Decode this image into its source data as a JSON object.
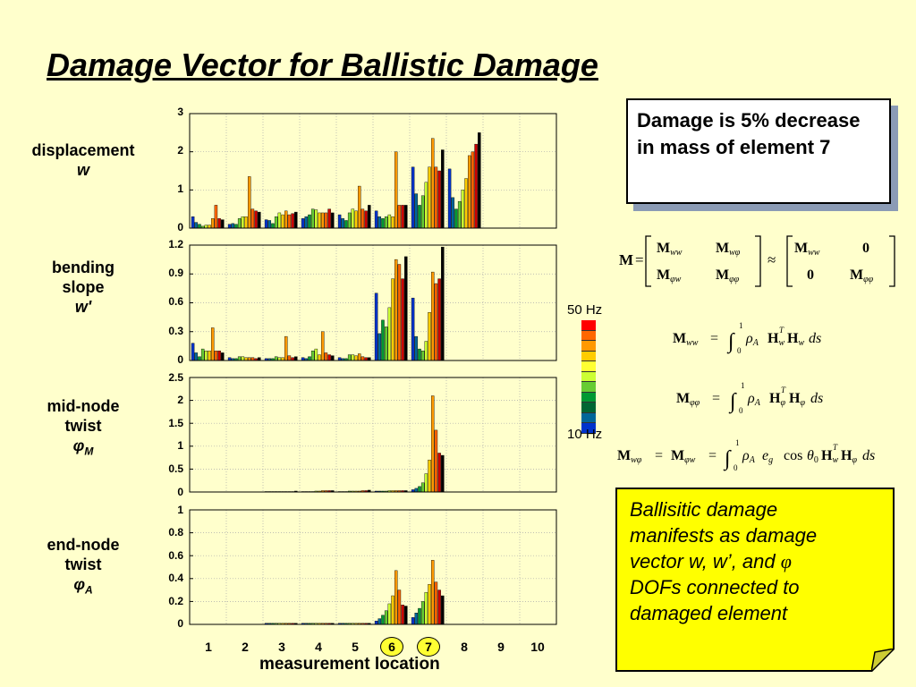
{
  "title": "Damage Vector for Ballistic Damage",
  "info_box": "Damage is 5% decrease in mass of element 7",
  "note_box": {
    "line1": "Ballisitic damage",
    "line2": "manifests as damage",
    "line3_pre": "vector w, w’, and ",
    "line3_sym": "φ",
    "line4": "DOFs connected to",
    "line5": "damaged element"
  },
  "row_labels": [
    {
      "l1": "displacement",
      "l2": "w",
      "l3": ""
    },
    {
      "l1": "bending",
      "l2": "slope",
      "l3": "w'"
    },
    {
      "l1": "mid-node",
      "l2": "twist",
      "l3_sym": "φ",
      "l3_sub": "M"
    },
    {
      "l1": "end-node",
      "l2": "twist",
      "l3_sym": "φ",
      "l3_sub": "A"
    }
  ],
  "colorbar": {
    "top_label": "50 Hz",
    "bottom_label": "10 Hz",
    "colors": [
      "#ff0000",
      "#ff6600",
      "#ff9900",
      "#ffcc00",
      "#ffff33",
      "#ccff33",
      "#66cc33",
      "#009933",
      "#006633",
      "#006699",
      "#0033cc"
    ]
  },
  "equations": {
    "eq1": "M = [ Mww  Mwφ ; Mφw  Mφφ ] ≈ [ Mww  0 ; 0  Mφφ ]",
    "eq2": "Mww = ∫₀¹ ρA HwT Hw ds",
    "eq3": "Mφφ = ∫₀¹ ρA HφT Hφ ds",
    "eq4": "Mwφ = Mφw = ∫₀¹ ρA eg cosθ0 HwT Hφ ds"
  },
  "chart_data": {
    "type": "bar",
    "xlabel": "measurement location",
    "categories": [
      "1",
      "2",
      "3",
      "4",
      "5",
      "6",
      "7",
      "8",
      "9",
      "10"
    ],
    "highlighted_categories": [
      "6",
      "7"
    ],
    "series_names": [
      "10 Hz",
      "",
      "",
      "",
      "",
      "",
      "",
      "",
      "",
      "50 Hz"
    ],
    "panels": [
      {
        "name": "displacement w",
        "ylim": [
          0,
          3
        ],
        "yticks": [
          "0",
          "1",
          "2",
          "3"
        ],
        "values": [
          [
            0.3,
            0.15,
            0.1,
            0.05,
            0.08,
            0.08,
            0.25,
            0.6,
            0.25,
            0.22
          ],
          [
            0.1,
            0.12,
            0.1,
            0.25,
            0.3,
            0.3,
            1.35,
            0.5,
            0.45,
            0.42
          ],
          [
            0.22,
            0.2,
            0.12,
            0.3,
            0.4,
            0.35,
            0.45,
            0.35,
            0.38,
            0.42
          ],
          [
            0.25,
            0.3,
            0.35,
            0.5,
            0.48,
            0.4,
            0.4,
            0.4,
            0.5,
            0.4
          ],
          [
            0.35,
            0.25,
            0.2,
            0.4,
            0.5,
            0.45,
            1.1,
            0.5,
            0.45,
            0.6
          ],
          [
            0.45,
            0.3,
            0.25,
            0.3,
            0.35,
            0.3,
            2.0,
            0.6,
            0.6,
            0.6
          ],
          [
            1.6,
            0.9,
            0.6,
            0.85,
            1.2,
            1.6,
            2.35,
            1.6,
            1.5,
            2.05
          ],
          [
            1.55,
            0.8,
            0.5,
            0.7,
            1.0,
            1.3,
            1.9,
            2.0,
            2.2,
            2.5
          ],
          [
            0,
            0,
            0,
            0,
            0,
            0,
            0,
            0,
            0,
            0
          ],
          [
            0,
            0,
            0,
            0,
            0,
            0,
            0,
            0,
            0,
            0
          ]
        ]
      },
      {
        "name": "bending slope w'",
        "ylim": [
          0,
          1.2
        ],
        "yticks": [
          "0",
          "0.3",
          "0.6",
          "0.9",
          "1.2"
        ],
        "values": [
          [
            0.18,
            0.08,
            0.04,
            0.12,
            0.1,
            0.1,
            0.34,
            0.1,
            0.1,
            0.08
          ],
          [
            0.03,
            0.02,
            0.02,
            0.04,
            0.04,
            0.03,
            0.03,
            0.03,
            0.02,
            0.03
          ],
          [
            0.02,
            0.02,
            0.02,
            0.04,
            0.03,
            0.03,
            0.25,
            0.05,
            0.03,
            0.04
          ],
          [
            0.03,
            0.02,
            0.04,
            0.1,
            0.12,
            0.06,
            0.3,
            0.08,
            0.06,
            0.05
          ],
          [
            0.03,
            0.02,
            0.02,
            0.06,
            0.06,
            0.05,
            0.07,
            0.04,
            0.03,
            0.03
          ],
          [
            0.7,
            0.28,
            0.42,
            0.35,
            0.55,
            0.85,
            1.05,
            1.0,
            0.85,
            1.08
          ],
          [
            0.65,
            0.25,
            0.12,
            0.1,
            0.2,
            0.5,
            0.92,
            0.8,
            0.85,
            1.18
          ],
          [
            0,
            0,
            0,
            0,
            0,
            0,
            0,
            0,
            0,
            0
          ],
          [
            0,
            0,
            0,
            0,
            0,
            0,
            0,
            0,
            0,
            0
          ],
          [
            0,
            0,
            0,
            0,
            0,
            0,
            0,
            0,
            0,
            0
          ]
        ]
      },
      {
        "name": "mid-node twist φM",
        "ylim": [
          0,
          2.5
        ],
        "yticks": [
          "0",
          "0.5",
          "1",
          "1.5",
          "2",
          "2.5"
        ],
        "values": [
          [
            0,
            0,
            0,
            0,
            0,
            0,
            0,
            0,
            0,
            0
          ],
          [
            0,
            0,
            0,
            0,
            0,
            0,
            0,
            0,
            0,
            0
          ],
          [
            0.01,
            0.01,
            0.01,
            0.01,
            0.01,
            0.01,
            0.01,
            0.01,
            0.01,
            0.02
          ],
          [
            0.01,
            0.01,
            0.01,
            0.01,
            0.02,
            0.02,
            0.03,
            0.03,
            0.03,
            0.03
          ],
          [
            0.01,
            0.01,
            0.01,
            0.02,
            0.02,
            0.02,
            0.02,
            0.03,
            0.03,
            0.04
          ],
          [
            0.02,
            0.02,
            0.02,
            0.02,
            0.03,
            0.03,
            0.03,
            0.03,
            0.03,
            0.03
          ],
          [
            0.05,
            0.08,
            0.12,
            0.2,
            0.4,
            0.7,
            2.1,
            1.35,
            0.85,
            0.8
          ],
          [
            0,
            0,
            0,
            0,
            0,
            0,
            0,
            0,
            0,
            0
          ],
          [
            0,
            0,
            0,
            0,
            0,
            0,
            0,
            0,
            0,
            0
          ],
          [
            0,
            0,
            0,
            0,
            0,
            0,
            0,
            0,
            0,
            0
          ]
        ]
      },
      {
        "name": "end-node twist φA",
        "ylim": [
          0,
          1
        ],
        "yticks": [
          "0",
          "0.2",
          "0.4",
          "0.6",
          "0.8",
          "1"
        ],
        "values": [
          [
            0,
            0,
            0,
            0,
            0,
            0,
            0,
            0,
            0,
            0
          ],
          [
            0,
            0,
            0,
            0,
            0,
            0,
            0,
            0,
            0,
            0
          ],
          [
            0.01,
            0.01,
            0.01,
            0.01,
            0.01,
            0.01,
            0.01,
            0.01,
            0.01,
            0.01
          ],
          [
            0.01,
            0.01,
            0.01,
            0.01,
            0.01,
            0.01,
            0.01,
            0.01,
            0.01,
            0.01
          ],
          [
            0.01,
            0.01,
            0.01,
            0.01,
            0.01,
            0.01,
            0.01,
            0.01,
            0.01,
            0.01
          ],
          [
            0.03,
            0.05,
            0.08,
            0.12,
            0.18,
            0.25,
            0.47,
            0.3,
            0.17,
            0.16
          ],
          [
            0.06,
            0.1,
            0.14,
            0.2,
            0.28,
            0.35,
            0.56,
            0.37,
            0.3,
            0.25
          ],
          [
            0,
            0,
            0,
            0,
            0,
            0,
            0,
            0,
            0,
            0
          ],
          [
            0,
            0,
            0,
            0,
            0,
            0,
            0,
            0,
            0,
            0
          ],
          [
            0,
            0,
            0,
            0,
            0,
            0,
            0,
            0,
            0,
            0
          ]
        ]
      }
    ]
  }
}
